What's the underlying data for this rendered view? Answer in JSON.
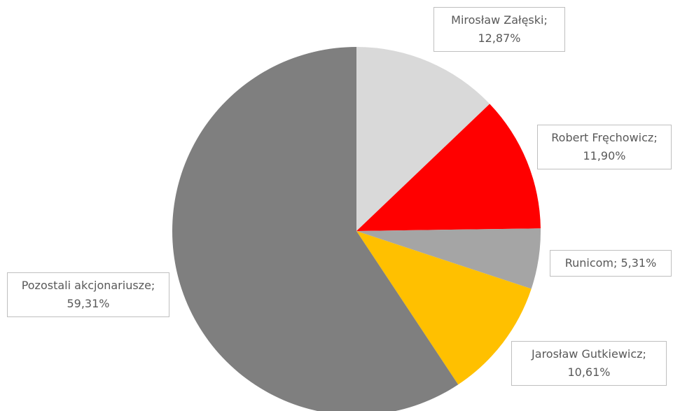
{
  "chart_data": {
    "type": "pie",
    "categories": [
      "Mirosław Załęski",
      "Robert Fręchowicz",
      "Runicom",
      "Jarosław Gutkiewicz",
      "Pozostali akcjonariusze"
    ],
    "values": [
      12.87,
      11.9,
      5.31,
      10.61,
      59.31
    ],
    "value_labels": [
      "Mirosław Załęski; 12,87%",
      "Robert Fręchowicz; 11,90%",
      "Runicom; 5,31%",
      "Jarosław Gutkiewicz; 10,61%",
      "Pozostali akcjonariusze; 59,31%"
    ],
    "colors": [
      "#d9d9d9",
      "#ff0000",
      "#a5a5a5",
      "#ffc000",
      "#7f7f7f"
    ]
  }
}
